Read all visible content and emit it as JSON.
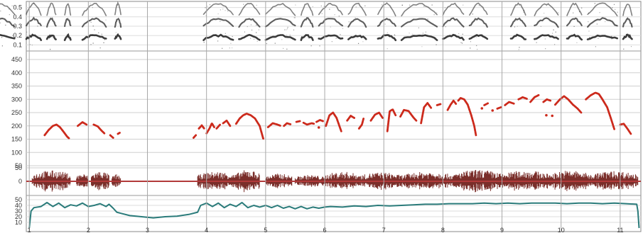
{
  "chart_data": [
    {
      "type": "heatmap",
      "panel": "spectrogram",
      "yticks": [
        "0.5",
        "0.4",
        "0.3",
        "0.2",
        "0.1"
      ],
      "bursts": [
        [
          0.25,
          0.75,
          0.08
        ],
        [
          0.95,
          1.2,
          0.06
        ],
        [
          1.3,
          1.45,
          0.05
        ],
        [
          1.6,
          1.7,
          0.04
        ],
        [
          1.9,
          2.3,
          0.07
        ],
        [
          2.45,
          2.55,
          0.03
        ],
        [
          3.95,
          4.45,
          0.08
        ],
        [
          4.55,
          4.9,
          0.07
        ],
        [
          5.0,
          5.5,
          0.06
        ],
        [
          5.6,
          5.8,
          0.04
        ],
        [
          5.9,
          6.3,
          0.07
        ],
        [
          6.4,
          6.7,
          0.05
        ],
        [
          6.9,
          7.2,
          0.06
        ],
        [
          7.3,
          7.9,
          0.06
        ],
        [
          8.0,
          8.35,
          0.05
        ],
        [
          8.45,
          8.75,
          0.06
        ],
        [
          9.15,
          9.4,
          0.05
        ],
        [
          9.55,
          9.95,
          0.07
        ],
        [
          10.1,
          10.35,
          0.05
        ],
        [
          10.45,
          10.95,
          0.07
        ],
        [
          11.05,
          11.2,
          0.03
        ]
      ]
    },
    {
      "type": "scatter",
      "panel": "pitch",
      "color": "#cc2a1c",
      "yticks": [
        450,
        400,
        350,
        300,
        250,
        200,
        150,
        100,
        50
      ],
      "ylim": [
        50,
        450
      ],
      "segments": [
        [
          [
            1.26,
            165
          ],
          [
            1.33,
            185
          ],
          [
            1.4,
            200
          ],
          [
            1.46,
            205
          ],
          [
            1.52,
            195
          ],
          [
            1.58,
            178
          ],
          [
            1.64,
            160
          ],
          [
            1.68,
            152
          ]
        ],
        [
          [
            1.82,
            200
          ],
          [
            1.9,
            214
          ],
          [
            1.97,
            205
          ]
        ],
        [
          [
            2.09,
            205
          ],
          [
            2.16,
            198
          ],
          [
            2.22,
            183
          ],
          [
            2.28,
            170
          ]
        ],
        [
          [
            2.37,
            165
          ],
          [
            2.42,
            155
          ]
        ],
        [
          [
            2.5,
            170
          ],
          [
            2.54,
            175
          ]
        ],
        [
          [
            3.78,
            155
          ],
          [
            3.82,
            165
          ]
        ],
        [
          [
            3.87,
            190
          ],
          [
            3.92,
            202
          ],
          [
            3.96,
            190
          ]
        ],
        [
          [
            4.0,
            172
          ],
          [
            4.05,
            190
          ],
          [
            4.09,
            210
          ],
          [
            4.13,
            195
          ]
        ],
        [
          [
            4.17,
            190
          ],
          [
            4.23,
            205
          ]
        ],
        [
          [
            4.28,
            210
          ],
          [
            4.34,
            220
          ],
          [
            4.4,
            200
          ]
        ],
        [
          [
            4.5,
            208
          ],
          [
            4.56,
            228
          ],
          [
            4.62,
            240
          ],
          [
            4.68,
            246
          ],
          [
            4.75,
            240
          ],
          [
            4.82,
            228
          ],
          [
            4.9,
            200
          ],
          [
            4.96,
            152
          ]
        ],
        [
          [
            5.04,
            195
          ],
          [
            5.12,
            210
          ],
          [
            5.2,
            205
          ],
          [
            5.26,
            200
          ]
        ],
        [
          [
            5.31,
            200
          ],
          [
            5.36,
            210
          ],
          [
            5.42,
            206
          ]
        ],
        [
          [
            5.52,
            215
          ],
          [
            5.58,
            218
          ]
        ],
        [
          [
            5.64,
            212
          ],
          [
            5.7,
            205
          ],
          [
            5.78,
            210
          ],
          [
            5.82,
            208
          ]
        ],
        [
          [
            5.86,
            215
          ],
          [
            5.92,
            222
          ],
          [
            5.97,
            218
          ]
        ],
        [
          [
            6.02,
            200
          ],
          [
            6.08,
            240
          ],
          [
            6.14,
            250
          ],
          [
            6.2,
            230
          ],
          [
            6.24,
            205
          ],
          [
            6.28,
            180
          ]
        ],
        [
          [
            6.38,
            220
          ],
          [
            6.44,
            238
          ],
          [
            6.5,
            230
          ]
        ],
        [
          [
            6.58,
            190
          ],
          [
            6.63,
            205
          ],
          [
            6.66,
            230
          ]
        ],
        [
          [
            6.78,
            220
          ],
          [
            6.85,
            242
          ],
          [
            6.92,
            250
          ],
          [
            6.98,
            230
          ]
        ],
        [
          [
            7.06,
            180
          ],
          [
            7.1,
            255
          ],
          [
            7.15,
            262
          ],
          [
            7.2,
            240
          ]
        ],
        [
          [
            7.28,
            235
          ],
          [
            7.34,
            260
          ],
          [
            7.42,
            256
          ],
          [
            7.5,
            232
          ],
          [
            7.55,
            220
          ]
        ],
        [
          [
            7.63,
            210
          ],
          [
            7.68,
            270
          ],
          [
            7.74,
            286
          ],
          [
            7.8,
            268
          ]
        ],
        [
          [
            7.9,
            278
          ],
          [
            7.96,
            282
          ]
        ],
        [
          [
            8.08,
            260
          ],
          [
            8.13,
            280
          ],
          [
            8.18,
            295
          ],
          [
            8.22,
            283
          ]
        ],
        [
          [
            8.26,
            295
          ],
          [
            8.3,
            305
          ],
          [
            8.36,
            300
          ],
          [
            8.42,
            280
          ],
          [
            8.48,
            240
          ],
          [
            8.53,
            200
          ],
          [
            8.56,
            165
          ]
        ],
        [
          [
            8.7,
            278
          ],
          [
            8.76,
            285
          ]
        ],
        [
          [
            8.92,
            265
          ],
          [
            8.98,
            270
          ]
        ],
        [
          [
            9.05,
            278
          ],
          [
            9.12,
            290
          ],
          [
            9.2,
            284
          ]
        ],
        [
          [
            9.28,
            300
          ],
          [
            9.35,
            308
          ],
          [
            9.42,
            302
          ]
        ],
        [
          [
            9.48,
            290
          ],
          [
            9.55,
            308
          ],
          [
            9.62,
            316
          ]
        ],
        [
          [
            9.7,
            290
          ],
          [
            9.76,
            300
          ],
          [
            9.82,
            295
          ]
        ],
        [
          [
            9.9,
            280
          ],
          [
            9.98,
            300
          ],
          [
            10.05,
            312
          ],
          [
            10.12,
            300
          ],
          [
            10.2,
            280
          ],
          [
            10.28,
            265
          ],
          [
            10.34,
            250
          ]
        ],
        [
          [
            10.42,
            300
          ],
          [
            10.5,
            315
          ],
          [
            10.58,
            325
          ],
          [
            10.64,
            320
          ],
          [
            10.7,
            300
          ],
          [
            10.78,
            270
          ],
          [
            10.84,
            230
          ],
          [
            10.9,
            188
          ]
        ],
        [
          [
            11.0,
            205
          ],
          [
            11.06,
            208
          ],
          [
            11.12,
            190
          ],
          [
            11.18,
            170
          ]
        ]
      ],
      "dots": [
        [
          8.66,
          266
        ],
        [
          8.84,
          258
        ],
        [
          9.75,
          240
        ],
        [
          9.85,
          238
        ],
        [
          5.9,
          194
        ]
      ]
    },
    {
      "type": "area",
      "panel": "waveform",
      "color": "#7a2e2a",
      "yticks": [
        50,
        0
      ],
      "ylim": [
        -50,
        50
      ],
      "bursts": [
        [
          1.05,
          1.7,
          0.85
        ],
        [
          1.8,
          2.0,
          0.6
        ],
        [
          2.05,
          2.35,
          0.8
        ],
        [
          2.4,
          2.55,
          0.55
        ],
        [
          3.85,
          4.5,
          0.75
        ],
        [
          4.5,
          4.9,
          0.9
        ],
        [
          5.0,
          5.45,
          0.6
        ],
        [
          5.5,
          6.0,
          0.5
        ],
        [
          6.0,
          6.6,
          0.75
        ],
        [
          6.6,
          7.3,
          0.7
        ],
        [
          7.3,
          8.2,
          0.75
        ],
        [
          8.2,
          9.0,
          0.9
        ],
        [
          9.0,
          9.8,
          0.85
        ],
        [
          9.8,
          10.5,
          0.85
        ],
        [
          10.5,
          11.3,
          0.8
        ]
      ]
    },
    {
      "type": "line",
      "panel": "intensity",
      "color": "#2a7b7a",
      "yticks": [
        50,
        40,
        30,
        20,
        10
      ],
      "ylim": [
        0,
        55
      ],
      "xlabel_ticks": [
        "1",
        "2",
        "3",
        "4",
        "5",
        "6",
        "7",
        "8",
        "9",
        "10",
        "11"
      ],
      "points": [
        [
          1.0,
          0
        ],
        [
          1.03,
          30
        ],
        [
          1.08,
          36
        ],
        [
          1.2,
          38
        ],
        [
          1.3,
          45
        ],
        [
          1.4,
          38
        ],
        [
          1.5,
          44
        ],
        [
          1.6,
          36
        ],
        [
          1.7,
          41
        ],
        [
          1.8,
          39
        ],
        [
          1.9,
          44
        ],
        [
          2.0,
          38
        ],
        [
          2.1,
          40
        ],
        [
          2.2,
          43
        ],
        [
          2.3,
          38
        ],
        [
          2.35,
          42
        ],
        [
          2.42,
          35
        ],
        [
          2.48,
          28
        ],
        [
          2.55,
          26
        ],
        [
          2.7,
          22
        ],
        [
          2.9,
          20
        ],
        [
          3.1,
          18
        ],
        [
          3.3,
          20
        ],
        [
          3.5,
          21
        ],
        [
          3.7,
          24
        ],
        [
          3.85,
          28
        ],
        [
          3.9,
          40
        ],
        [
          4.0,
          44
        ],
        [
          4.1,
          38
        ],
        [
          4.2,
          44
        ],
        [
          4.3,
          36
        ],
        [
          4.4,
          42
        ],
        [
          4.5,
          38
        ],
        [
          4.6,
          45
        ],
        [
          4.7,
          36
        ],
        [
          4.8,
          40
        ],
        [
          4.9,
          37
        ],
        [
          5.0,
          40
        ],
        [
          5.1,
          36
        ],
        [
          5.2,
          40
        ],
        [
          5.3,
          35
        ],
        [
          5.4,
          38
        ],
        [
          5.5,
          34
        ],
        [
          5.6,
          38
        ],
        [
          5.7,
          34
        ],
        [
          5.8,
          37
        ],
        [
          5.9,
          35
        ],
        [
          6.0,
          37
        ],
        [
          6.1,
          38
        ],
        [
          6.3,
          37
        ],
        [
          6.5,
          39
        ],
        [
          6.7,
          38
        ],
        [
          6.9,
          40
        ],
        [
          7.1,
          39
        ],
        [
          7.3,
          40
        ],
        [
          7.5,
          41
        ],
        [
          7.7,
          42
        ],
        [
          7.9,
          42
        ],
        [
          8.1,
          43
        ],
        [
          8.3,
          43
        ],
        [
          8.5,
          43
        ],
        [
          8.7,
          44
        ],
        [
          8.9,
          43
        ],
        [
          9.1,
          44
        ],
        [
          9.3,
          43
        ],
        [
          9.5,
          44
        ],
        [
          9.7,
          44
        ],
        [
          9.9,
          44
        ],
        [
          10.1,
          43
        ],
        [
          10.3,
          44
        ],
        [
          10.5,
          44
        ],
        [
          10.7,
          43
        ],
        [
          10.9,
          44
        ],
        [
          11.1,
          43
        ],
        [
          11.28,
          42
        ],
        [
          11.3,
          30
        ],
        [
          11.32,
          0
        ]
      ]
    }
  ]
}
